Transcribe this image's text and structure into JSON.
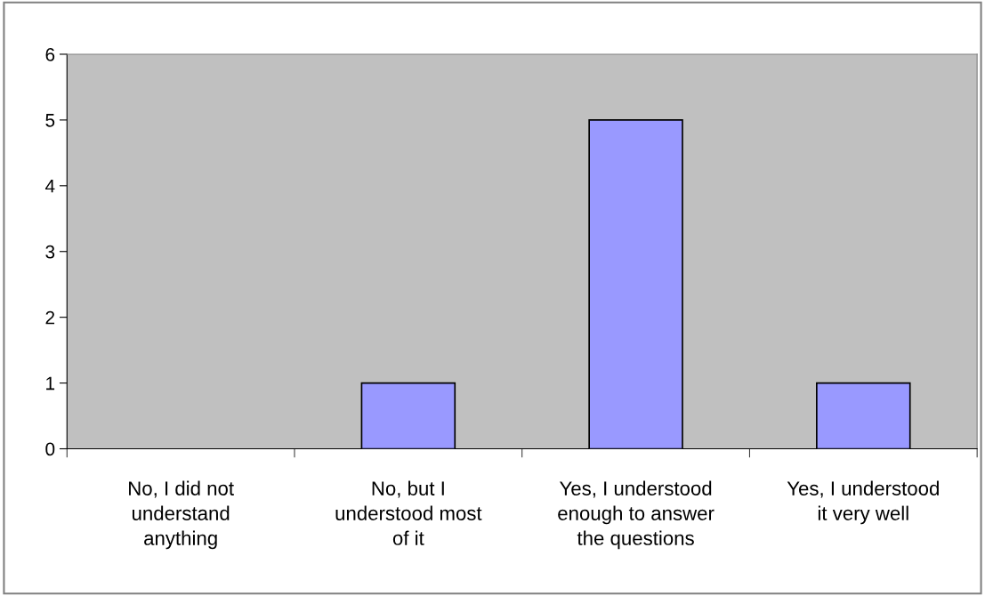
{
  "chart_data": {
    "type": "bar",
    "categories": [
      "No, I did not\nunderstand\nanything",
      "No, but I\nunderstood most\nof it",
      "Yes, I understood\nenough to answer\nthe questions",
      "Yes, I understood\nit very well"
    ],
    "values": [
      0,
      1,
      5,
      1
    ],
    "color": "#9999ff",
    "ylim": [
      0,
      6
    ],
    "yticks": [
      0,
      1,
      2,
      3,
      4,
      5,
      6
    ],
    "grid": false,
    "legend": false
  }
}
